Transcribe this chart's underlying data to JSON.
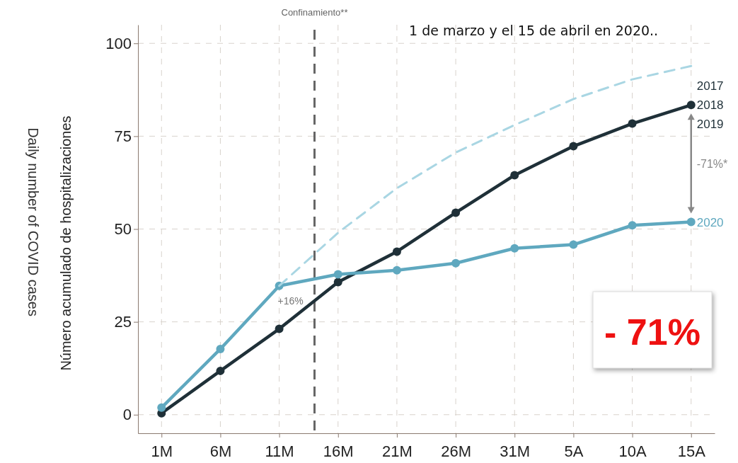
{
  "chart_data": {
    "type": "line",
    "title": "1 de marzo y el 15 de abril en 2020..",
    "ylabel": "Número acumulado de hospitalizaciones",
    "x": [
      "--03-01",
      "--03-06",
      "--03-11",
      "--03-16",
      "--03-21",
      "--03-26",
      "--03-31",
      "--04-05",
      "--04-10",
      "--04-15"
    ],
    "xlim": [
      "--02-27",
      "--04-17"
    ],
    "xticks": [
      {
        "value": "--03-01",
        "label": "1M"
      },
      {
        "value": "--03-06",
        "label": "6M"
      },
      {
        "value": "--03-11",
        "label": "11M"
      },
      {
        "value": "--03-16",
        "label": "16M"
      },
      {
        "value": "--03-21",
        "label": "21M"
      },
      {
        "value": "--03-26",
        "label": "26M"
      },
      {
        "value": "--03-31",
        "label": "31M"
      },
      {
        "value": "--04-05",
        "label": "5A"
      },
      {
        "value": "--04-10",
        "label": "10A"
      },
      {
        "value": "--04-15",
        "label": "15A"
      }
    ],
    "ylim": [
      -5,
      105
    ],
    "yticks": [
      0,
      25,
      50,
      75,
      100
    ],
    "grid": true,
    "marker": "circle",
    "series": [
      {
        "name": "2017\n2018\n2019",
        "color": "#1f3038",
        "values": [
          0.4,
          11.8,
          23.1,
          35.7,
          43.9,
          54.4,
          64.5,
          72.3,
          78.4,
          83.4
        ]
      },
      {
        "name": "2020",
        "color": "#5fa8bf",
        "values": [
          1.9,
          17.7,
          34.7,
          37.8,
          38.9,
          40.8,
          44.8,
          45.8,
          51,
          51.9
        ]
      },
      {
        "color": "#a9d6e3",
        "line_style": "dashed",
        "marker": "none",
        "x": [
          "--03-11",
          "--03-16",
          "--03-21",
          "--03-26",
          "--03-31",
          "--04-05",
          "--04-10",
          "--04-15"
        ],
        "values": [
          34.7,
          49,
          61,
          70.6,
          78,
          85,
          90.3,
          93.9
        ]
      }
    ],
    "ref_lines": [
      {
        "axis": "x",
        "value": "--03-14",
        "label": "Confinamiento**",
        "color": "#666666",
        "line_style": "dashed"
      }
    ],
    "annotations": [
      "Daily number of COVID cases",
      "+16%",
      "-71%*",
      "- 71%"
    ]
  }
}
